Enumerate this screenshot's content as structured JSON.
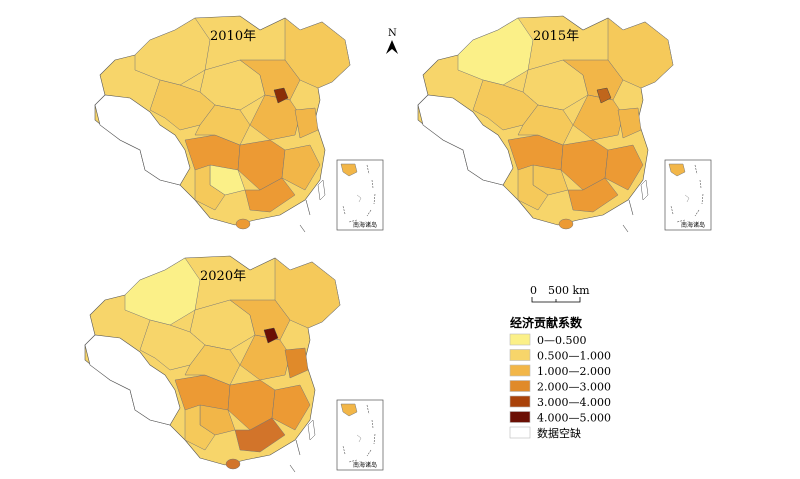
{
  "maps": [
    {
      "title": "2010年",
      "inset_label": "南海诸岛",
      "region_fills": [
        "#f7d56a",
        "#f7d56a",
        "#f5c95a",
        "#f5c95a",
        "#f2b648",
        "#ec9a34",
        "#ec9a34",
        "#f2b648",
        "#fbf088",
        "#f2b648",
        "#f5c95a",
        "#8b2e06",
        "#f2b648",
        "#ec9a34",
        "#f5c95a"
      ]
    },
    {
      "title": "2015年",
      "inset_label": "南海诸岛",
      "region_fills": [
        "#fbf088",
        "#f7d56a",
        "#f5c95a",
        "#f5c95a",
        "#f2b648",
        "#ec9a34",
        "#ec9a34",
        "#f2b648",
        "#f5c95a",
        "#ec9a34",
        "#f5c95a",
        "#c0661c",
        "#f2b648",
        "#ec9a34",
        "#f5c95a"
      ]
    },
    {
      "title": "2020年",
      "inset_label": "南海诸岛",
      "region_fills": [
        "#fbf088",
        "#f7d56a",
        "#f7d56a",
        "#f5c95a",
        "#f2b648",
        "#ec9a34",
        "#ec9a34",
        "#f2b648",
        "#f2b648",
        "#ec9a34",
        "#f5c95a",
        "#6b0f04",
        "#e08a2a",
        "#d2742a",
        "#f5c95a"
      ]
    }
  ],
  "north": "N",
  "scale": {
    "zero": "0",
    "value": "500 km"
  },
  "legend": {
    "title": "经济贡献系数",
    "items": [
      {
        "label": "0—0.500",
        "color": "#fbf088"
      },
      {
        "label": "0.500—1.000",
        "color": "#f7d56a"
      },
      {
        "label": "1.000—2.000",
        "color": "#f2b648"
      },
      {
        "label": "2.000—3.000",
        "color": "#e08a2a"
      },
      {
        "label": "3.000—4.000",
        "color": "#a94209"
      },
      {
        "label": "4.000—5.000",
        "color": "#6b0f04"
      },
      {
        "label": "数据空缺",
        "color": "#ffffff"
      }
    ]
  }
}
